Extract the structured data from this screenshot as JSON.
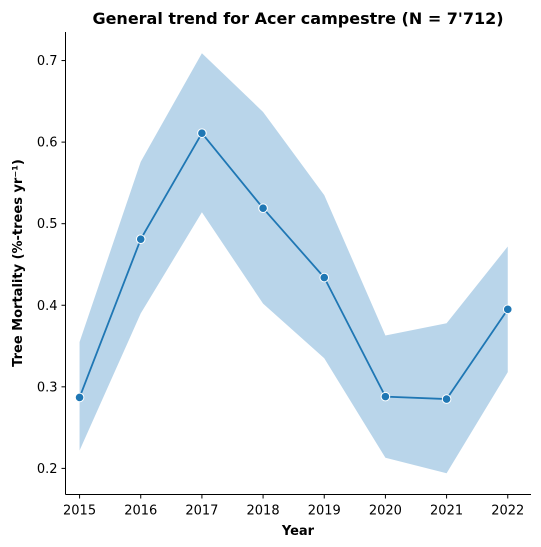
{
  "chart_data": {
    "type": "line",
    "title": "General trend for Acer campestre  (N = 7'712)",
    "xlabel": "Year",
    "ylabel": "Tree Mortality (%-trees yr⁻¹)",
    "x": [
      2015,
      2016,
      2017,
      2018,
      2019,
      2020,
      2021,
      2022
    ],
    "series": [
      {
        "values": [
          0.287,
          0.481,
          0.611,
          0.519,
          0.434,
          0.288,
          0.285,
          0.395
        ],
        "ci_lower": [
          0.222,
          0.39,
          0.514,
          0.402,
          0.335,
          0.213,
          0.194,
          0.318
        ],
        "ci_upper": [
          0.355,
          0.576,
          0.709,
          0.637,
          0.535,
          0.363,
          0.378,
          0.472
        ],
        "color": "#1f77b4",
        "band_color": "#b9d5ea"
      }
    ],
    "xlim": [
      2014.77,
      2022.38
    ],
    "ylim": [
      0.168,
      0.735
    ],
    "yticks": [
      0.2,
      0.3,
      0.4,
      0.5,
      0.6,
      0.7
    ],
    "xticks": [
      2015,
      2016,
      2017,
      2018,
      2019,
      2020,
      2021,
      2022
    ],
    "grid": false,
    "legend": "none"
  }
}
